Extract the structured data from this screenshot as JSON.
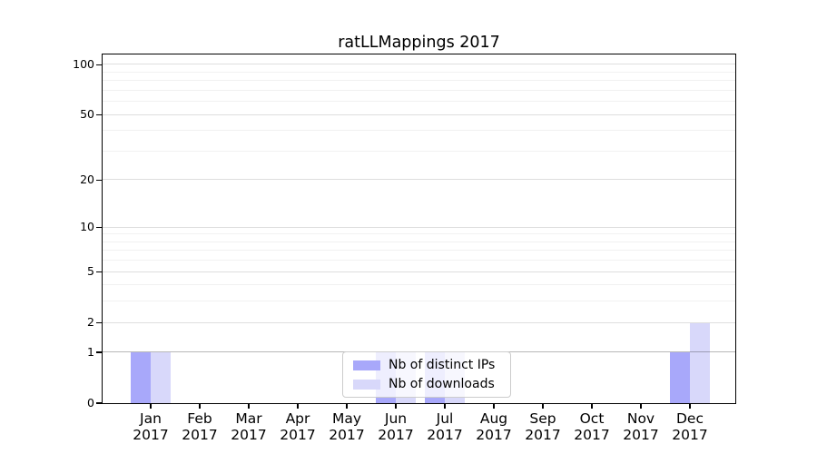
{
  "chart_data": {
    "type": "bar",
    "title": "ratLLMappings 2017",
    "categories": [
      "Jan",
      "Feb",
      "Mar",
      "Apr",
      "May",
      "Jun",
      "Jul",
      "Aug",
      "Sep",
      "Oct",
      "Nov",
      "Dec"
    ],
    "year_label": "2017",
    "series": [
      {
        "name": "Nb of distinct IPs",
        "color": "#a8a8fa",
        "values": [
          1,
          0,
          0,
          0,
          0,
          1,
          1,
          0,
          0,
          0,
          0,
          1
        ]
      },
      {
        "name": "Nb of downloads",
        "color": "#d8d8fa",
        "values": [
          1,
          0,
          0,
          0,
          0,
          1,
          1,
          0,
          0,
          0,
          0,
          2
        ]
      }
    ],
    "xlabel": "",
    "ylabel": "",
    "yscale": "log1p",
    "ylim": [
      0,
      115
    ],
    "y_major_ticks": [
      0,
      1,
      2,
      5,
      10,
      20,
      50,
      100
    ],
    "y_minor_ticks": [
      3,
      4,
      6,
      7,
      8,
      9,
      30,
      40,
      60,
      70,
      80,
      90
    ],
    "grid": "horizontal major and minor gridlines",
    "legend_position": "lower center"
  },
  "colors": {
    "background": "#ffffff",
    "axis_spine": "#000000",
    "grid_major": "#dedede",
    "grid_minor": "#f0f0f0",
    "grid_baseline_one": "#b8b8b8",
    "legend_border": "#cccccc"
  }
}
